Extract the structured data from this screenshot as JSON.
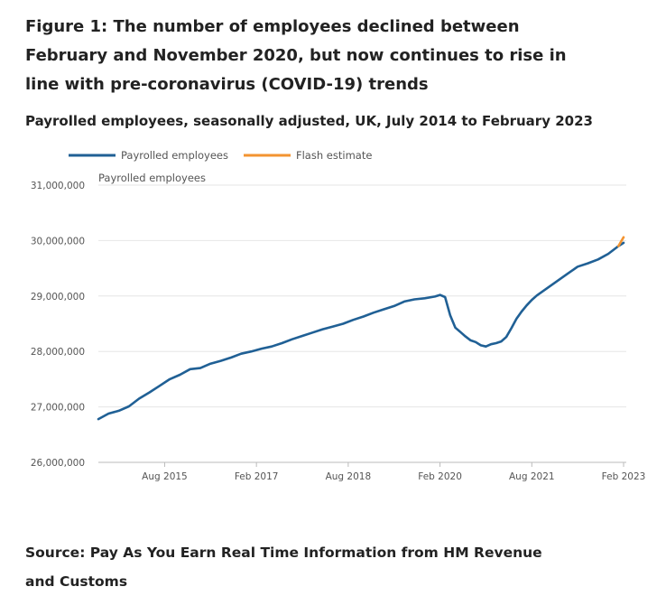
{
  "title": "Figure 1: The number of employees declined between February and November 2020, but now continues to rise in line with pre-coronavirus (COVID-19) trends",
  "subtitle": "Payrolled employees, seasonally adjusted, UK, July 2014 to February 2023",
  "source": "Source: Pay As You Earn Real Time Information from HM Revenue and Customs",
  "chart_data": {
    "type": "line",
    "ylabel": "Payrolled employees",
    "xlabel": "",
    "ylim": [
      26000000,
      31000000
    ],
    "y_ticks": [
      {
        "value": 26000000,
        "label": "26,000,000"
      },
      {
        "value": 27000000,
        "label": "27,000,000"
      },
      {
        "value": 28000000,
        "label": "28,000,000"
      },
      {
        "value": 29000000,
        "label": "29,000,000"
      },
      {
        "value": 30000000,
        "label": "30,000,000"
      },
      {
        "value": 31000000,
        "label": "31,000,000"
      }
    ],
    "x_range": [
      "2014-07",
      "2023-02"
    ],
    "x_ticks": [
      {
        "value": "2015-08",
        "label": "Aug 2015"
      },
      {
        "value": "2017-02",
        "label": "Feb 2017"
      },
      {
        "value": "2018-08",
        "label": "Aug 2018"
      },
      {
        "value": "2020-02",
        "label": "Feb 2020"
      },
      {
        "value": "2021-08",
        "label": "Aug 2021"
      },
      {
        "value": "2023-02",
        "label": "Feb 2023"
      }
    ],
    "grid": "horizontal",
    "legend_position": "top-left",
    "series": [
      {
        "name": "Payrolled employees",
        "color": "#206095",
        "points": [
          [
            "2014-07",
            26780000
          ],
          [
            "2014-09",
            26880000
          ],
          [
            "2014-11",
            26930000
          ],
          [
            "2015-01",
            27010000
          ],
          [
            "2015-03",
            27150000
          ],
          [
            "2015-05",
            27260000
          ],
          [
            "2015-07",
            27380000
          ],
          [
            "2015-09",
            27500000
          ],
          [
            "2015-11",
            27580000
          ],
          [
            "2016-01",
            27680000
          ],
          [
            "2016-03",
            27700000
          ],
          [
            "2016-05",
            27780000
          ],
          [
            "2016-07",
            27830000
          ],
          [
            "2016-09",
            27890000
          ],
          [
            "2016-11",
            27960000
          ],
          [
            "2017-01",
            28000000
          ],
          [
            "2017-03",
            28050000
          ],
          [
            "2017-05",
            28090000
          ],
          [
            "2017-07",
            28150000
          ],
          [
            "2017-09",
            28220000
          ],
          [
            "2017-11",
            28280000
          ],
          [
            "2018-01",
            28340000
          ],
          [
            "2018-03",
            28400000
          ],
          [
            "2018-05",
            28450000
          ],
          [
            "2018-07",
            28500000
          ],
          [
            "2018-09",
            28570000
          ],
          [
            "2018-11",
            28630000
          ],
          [
            "2019-01",
            28700000
          ],
          [
            "2019-03",
            28760000
          ],
          [
            "2019-05",
            28820000
          ],
          [
            "2019-07",
            28900000
          ],
          [
            "2019-09",
            28940000
          ],
          [
            "2019-11",
            28960000
          ],
          [
            "2020-01",
            28990000
          ],
          [
            "2020-02",
            29020000
          ],
          [
            "2020-03",
            28980000
          ],
          [
            "2020-04",
            28650000
          ],
          [
            "2020-05",
            28430000
          ],
          [
            "2020-06",
            28350000
          ],
          [
            "2020-07",
            28270000
          ],
          [
            "2020-08",
            28200000
          ],
          [
            "2020-09",
            28170000
          ],
          [
            "2020-10",
            28110000
          ],
          [
            "2020-11",
            28090000
          ],
          [
            "2020-12",
            28130000
          ],
          [
            "2021-01",
            28150000
          ],
          [
            "2021-02",
            28180000
          ],
          [
            "2021-03",
            28260000
          ],
          [
            "2021-04",
            28420000
          ],
          [
            "2021-05",
            28590000
          ],
          [
            "2021-06",
            28720000
          ],
          [
            "2021-07",
            28830000
          ],
          [
            "2021-08",
            28930000
          ],
          [
            "2021-09",
            29010000
          ],
          [
            "2021-11",
            29140000
          ],
          [
            "2022-01",
            29270000
          ],
          [
            "2022-03",
            29400000
          ],
          [
            "2022-05",
            29530000
          ],
          [
            "2022-07",
            29590000
          ],
          [
            "2022-09",
            29660000
          ],
          [
            "2022-11",
            29760000
          ],
          [
            "2023-01",
            29900000
          ],
          [
            "2023-02",
            29960000
          ]
        ]
      },
      {
        "name": "Flash estimate",
        "color": "#f39431",
        "points": [
          [
            "2023-01",
            29900000
          ],
          [
            "2023-02",
            30060000
          ]
        ]
      }
    ]
  }
}
